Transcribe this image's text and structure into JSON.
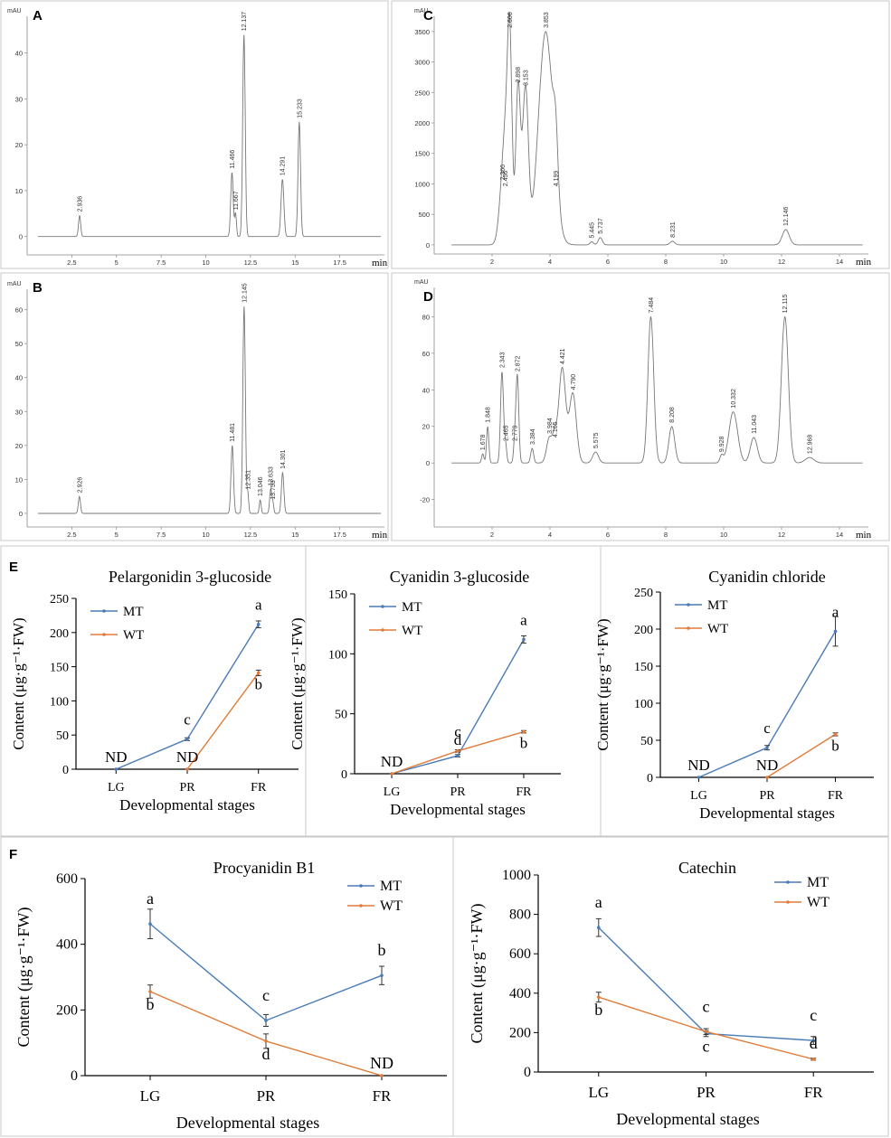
{
  "panel_labels": {
    "A": "A",
    "B": "B",
    "C": "C",
    "D": "D",
    "E": "E",
    "F": "F"
  },
  "chromatograms": [
    {
      "id": "A",
      "yunit": "mAU",
      "xunit": "min",
      "xlim": [
        0,
        20
      ],
      "ylim": [
        -4,
        48
      ],
      "xticks": [
        2.5,
        5,
        7.5,
        10,
        12.5,
        15,
        17.5
      ],
      "xtick_labels": [
        "2.5",
        "5",
        "7.5",
        "10",
        "12.5",
        "15",
        "17.5"
      ],
      "yticks": [
        0,
        10,
        20,
        30,
        40
      ],
      "ytick_labels": [
        "0",
        "10",
        "20",
        "30",
        "40"
      ],
      "peaks": [
        {
          "t": 2.936,
          "h": 4.6,
          "w": 0.06,
          "label": "2.936"
        },
        {
          "t": 11.466,
          "h": 14,
          "w": 0.07,
          "label": "11.466"
        },
        {
          "t": 11.667,
          "h": 5,
          "w": 0.05,
          "label": "11.667"
        },
        {
          "t": 12.137,
          "h": 44,
          "w": 0.07,
          "label": "12.137"
        },
        {
          "t": 14.291,
          "h": 12.5,
          "w": 0.08,
          "label": "14.291"
        },
        {
          "t": 15.233,
          "h": 25,
          "w": 0.07,
          "label": "15.233"
        }
      ]
    },
    {
      "id": "B",
      "yunit": "mAU",
      "xunit": "min",
      "xlim": [
        0,
        20
      ],
      "ylim": [
        -4,
        66
      ],
      "xticks": [
        2.5,
        5,
        7.5,
        10,
        12.5,
        15,
        17.5
      ],
      "xtick_labels": [
        "2.5",
        "5",
        "7.5",
        "10",
        "12.5",
        "15",
        "17.5"
      ],
      "yticks": [
        0,
        10,
        20,
        30,
        40,
        50,
        60
      ],
      "ytick_labels": [
        "0",
        "10",
        "20",
        "30",
        "40",
        "50",
        "60"
      ],
      "peaks": [
        {
          "t": 2.926,
          "h": 5,
          "w": 0.06,
          "label": "2.926"
        },
        {
          "t": 11.481,
          "h": 20,
          "w": 0.07,
          "label": "11.481"
        },
        {
          "t": 12.145,
          "h": 61,
          "w": 0.07,
          "label": "12.145"
        },
        {
          "t": 12.351,
          "h": 6,
          "w": 0.05,
          "label": "12.351"
        },
        {
          "t": 13.046,
          "h": 4,
          "w": 0.05,
          "label": "13.046"
        },
        {
          "t": 13.633,
          "h": 7,
          "w": 0.06,
          "label": "13.633"
        },
        {
          "t": 13.753,
          "h": 3,
          "w": 0.05,
          "label": "13.753"
        },
        {
          "t": 14.301,
          "h": 12,
          "w": 0.07,
          "label": "14.301"
        }
      ]
    },
    {
      "id": "C",
      "yunit": "mAU",
      "xunit": "min",
      "xlim": [
        0,
        15
      ],
      "ylim": [
        -150,
        3750
      ],
      "xticks": [
        2,
        4,
        6,
        8,
        10,
        12,
        14
      ],
      "xtick_labels": [
        "2",
        "4",
        "6",
        "8",
        "10",
        "12",
        "14"
      ],
      "yticks": [
        0,
        500,
        1000,
        1500,
        2000,
        2500,
        3000,
        3500
      ],
      "ytick_labels": [
        "0",
        "500",
        "1000",
        "1500",
        "2000",
        "2500",
        "3000",
        "3500"
      ],
      "peaks": [
        {
          "t": 2.366,
          "h": 1000,
          "w": 0.12,
          "label": "2.366"
        },
        {
          "t": 2.456,
          "h": 900,
          "w": 0.08,
          "label": "2.456"
        },
        {
          "t": 2.606,
          "h": 3500,
          "w": 0.08,
          "label": "2.606"
        },
        {
          "t": 2.898,
          "h": 2600,
          "w": 0.08,
          "label": "2.898"
        },
        {
          "t": 3.153,
          "h": 2550,
          "w": 0.1,
          "label": "3.153"
        },
        {
          "t": 3.853,
          "h": 3500,
          "w": 0.25,
          "label": "3.853"
        },
        {
          "t": 4.199,
          "h": 900,
          "w": 0.08,
          "label": "4.199"
        },
        {
          "t": 5.445,
          "h": 50,
          "w": 0.06,
          "label": "5.445"
        },
        {
          "t": 5.737,
          "h": 120,
          "w": 0.07,
          "label": "5.737"
        },
        {
          "t": 8.231,
          "h": 60,
          "w": 0.08,
          "label": "8.231"
        },
        {
          "t": 12.146,
          "h": 250,
          "w": 0.12,
          "label": "12.146"
        }
      ]
    },
    {
      "id": "D",
      "yunit": "mAU",
      "xunit": "min",
      "xlim": [
        0,
        15
      ],
      "ylim": [
        -35,
        96
      ],
      "xticks": [
        2,
        4,
        6,
        8,
        10,
        12,
        14
      ],
      "xtick_labels": [
        "2",
        "4",
        "6",
        "8",
        "10",
        "12",
        "14"
      ],
      "yticks": [
        -20,
        0,
        20,
        40,
        60,
        80
      ],
      "ytick_labels": [
        "-20",
        "0",
        "20",
        "40",
        "60",
        "80"
      ],
      "peaks": [
        {
          "t": 1.678,
          "h": 5,
          "w": 0.04,
          "label": "1.678"
        },
        {
          "t": 1.848,
          "h": 20,
          "w": 0.04,
          "label": "1.848"
        },
        {
          "t": 2.343,
          "h": 50,
          "w": 0.05,
          "label": "2.343"
        },
        {
          "t": 2.465,
          "h": 10,
          "w": 0.04,
          "label": "2.465"
        },
        {
          "t": 2.779,
          "h": 10,
          "w": 0.04,
          "label": "2.779"
        },
        {
          "t": 2.872,
          "h": 48,
          "w": 0.05,
          "label": "2.872"
        },
        {
          "t": 3.384,
          "h": 8,
          "w": 0.05,
          "label": "3.384"
        },
        {
          "t": 3.984,
          "h": 14,
          "w": 0.1,
          "label": "3.984"
        },
        {
          "t": 4.165,
          "h": 12,
          "w": 0.07,
          "label": "4.165"
        },
        {
          "t": 4.421,
          "h": 52,
          "w": 0.12,
          "label": "4.421"
        },
        {
          "t": 4.79,
          "h": 38,
          "w": 0.12,
          "label": "4.790"
        },
        {
          "t": 5.575,
          "h": 6,
          "w": 0.1,
          "label": "5.575"
        },
        {
          "t": 7.484,
          "h": 80,
          "w": 0.1,
          "label": "7.484"
        },
        {
          "t": 8.208,
          "h": 20,
          "w": 0.1,
          "label": "8.208"
        },
        {
          "t": 9.928,
          "h": 4,
          "w": 0.06,
          "label": "9.928"
        },
        {
          "t": 10.332,
          "h": 28,
          "w": 0.15,
          "label": "10.332"
        },
        {
          "t": 11.043,
          "h": 14,
          "w": 0.12,
          "label": "11.043"
        },
        {
          "t": 12.115,
          "h": 80,
          "w": 0.12,
          "label": "12.115"
        },
        {
          "t": 12.968,
          "h": 3,
          "w": 0.15,
          "label": "12.968"
        }
      ]
    }
  ],
  "chart_data": [
    {
      "id": "E1",
      "type": "line",
      "title": "Pelargonidin 3-glucoside",
      "categories": [
        "LG",
        "PR",
        "FR"
      ],
      "xlabel": "Developmental stages",
      "ylabel": "Content (μg·g⁻¹·FW)",
      "ylim": [
        0,
        250
      ],
      "yticks": [
        0,
        50,
        100,
        150,
        200,
        250
      ],
      "ytick_labels": [
        "0",
        "50",
        "100",
        "150",
        "200",
        "250"
      ],
      "series": [
        {
          "name": "MT",
          "color": "#4a7bb7",
          "values": [
            0,
            44,
            212
          ],
          "errors": [
            0,
            2,
            5
          ]
        },
        {
          "name": "WT",
          "color": "#e07b39",
          "values": [
            null,
            0,
            141
          ],
          "errors": [
            0,
            0,
            4
          ]
        }
      ],
      "annotations": [
        {
          "cat": 0,
          "y": 0,
          "text": "ND"
        },
        {
          "cat": 1,
          "y": 44,
          "text": "c"
        },
        {
          "cat": 1,
          "y": 0,
          "text": "ND"
        },
        {
          "cat": 2,
          "y": 212,
          "text": "a"
        },
        {
          "cat": 2,
          "y": 141,
          "text": "b"
        }
      ]
    },
    {
      "id": "E2",
      "type": "line",
      "title": "Cyanidin 3-glucoside",
      "categories": [
        "LG",
        "PR",
        "FR"
      ],
      "xlabel": "Developmental stages",
      "ylabel": "Content (μg·g⁻¹·FW)",
      "ylim": [
        0,
        150
      ],
      "yticks": [
        0,
        50,
        100,
        150
      ],
      "ytick_labels": [
        "0",
        "50",
        "100",
        "150"
      ],
      "series": [
        {
          "name": "MT",
          "color": "#4a7bb7",
          "values": [
            0,
            15,
            112
          ],
          "errors": [
            0,
            1,
            3
          ]
        },
        {
          "name": "WT",
          "color": "#e07b39",
          "values": [
            0,
            19,
            35
          ],
          "errors": [
            0,
            1,
            1
          ]
        }
      ],
      "annotations": [
        {
          "cat": 0,
          "y": 0,
          "text": "ND"
        },
        {
          "cat": 1,
          "y": 19,
          "text": "c"
        },
        {
          "cat": 1,
          "y": 15,
          "text": "d"
        },
        {
          "cat": 2,
          "y": 112,
          "text": "a"
        },
        {
          "cat": 2,
          "y": 35,
          "text": "b"
        }
      ]
    },
    {
      "id": "E3",
      "type": "line",
      "title": "Cyanidin chloride",
      "categories": [
        "LG",
        "PR",
        "FR"
      ],
      "xlabel": "Developmental stages",
      "ylabel": "Content (μg·g⁻¹·FW)",
      "ylim": [
        0,
        250
      ],
      "yticks": [
        0,
        50,
        100,
        150,
        200,
        250
      ],
      "ytick_labels": [
        "0",
        "50",
        "100",
        "150",
        "200",
        "250"
      ],
      "series": [
        {
          "name": "MT",
          "color": "#4a7bb7",
          "values": [
            0,
            40,
            197
          ],
          "errors": [
            0,
            3,
            20
          ]
        },
        {
          "name": "WT",
          "color": "#e07b39",
          "values": [
            null,
            0,
            58
          ],
          "errors": [
            0,
            0,
            2
          ]
        }
      ],
      "annotations": [
        {
          "cat": 0,
          "y": 0,
          "text": "ND"
        },
        {
          "cat": 1,
          "y": 40,
          "text": "c"
        },
        {
          "cat": 1,
          "y": 0,
          "text": "ND"
        },
        {
          "cat": 2,
          "y": 197,
          "text": "a"
        },
        {
          "cat": 2,
          "y": 58,
          "text": "b"
        }
      ]
    },
    {
      "id": "F1",
      "type": "line",
      "title": "Procyanidin B1",
      "categories": [
        "LG",
        "PR",
        "FR"
      ],
      "xlabel": "Developmental stages",
      "ylabel": "Content (μg·g⁻¹·FW)",
      "ylim": [
        0,
        600
      ],
      "yticks": [
        0,
        200,
        400,
        600
      ],
      "ytick_labels": [
        "0",
        "200",
        "400",
        "600"
      ],
      "series": [
        {
          "name": "MT",
          "color": "#4a7bb7",
          "values": [
            462,
            168,
            305
          ],
          "errors": [
            45,
            18,
            28
          ]
        },
        {
          "name": "WT",
          "color": "#e07b39",
          "values": [
            256,
            105,
            0
          ],
          "errors": [
            20,
            22,
            0
          ]
        }
      ],
      "annotations": [
        {
          "cat": 0,
          "y": 462,
          "text": "a"
        },
        {
          "cat": 0,
          "y": 256,
          "text": "b"
        },
        {
          "cat": 1,
          "y": 168,
          "text": "c"
        },
        {
          "cat": 1,
          "y": 105,
          "text": "d"
        },
        {
          "cat": 2,
          "y": 305,
          "text": "b"
        },
        {
          "cat": 2,
          "y": 0,
          "text": "ND"
        }
      ]
    },
    {
      "id": "F2",
      "type": "line",
      "title": "Catechin",
      "categories": [
        "LG",
        "PR",
        "FR"
      ],
      "xlabel": "Developmental stages",
      "ylabel": "Content (μg·g⁻¹·FW)",
      "ylim": [
        0,
        1000
      ],
      "yticks": [
        0,
        200,
        400,
        600,
        800,
        1000
      ],
      "ytick_labels": [
        "0",
        "200",
        "400",
        "600",
        "800",
        "1000"
      ],
      "series": [
        {
          "name": "MT",
          "color": "#4a7bb7",
          "values": [
            733,
            195,
            160
          ],
          "errors": [
            45,
            15,
            20
          ]
        },
        {
          "name": "WT",
          "color": "#e07b39",
          "values": [
            380,
            205,
            65
          ],
          "errors": [
            25,
            15,
            5
          ]
        }
      ],
      "annotations": [
        {
          "cat": 0,
          "y": 733,
          "text": "a"
        },
        {
          "cat": 0,
          "y": 380,
          "text": "b"
        },
        {
          "cat": 1,
          "y": 205,
          "text": "c"
        },
        {
          "cat": 1,
          "y": 195,
          "text": "c"
        },
        {
          "cat": 2,
          "y": 160,
          "text": "c"
        },
        {
          "cat": 2,
          "y": 65,
          "text": "d"
        }
      ]
    }
  ]
}
